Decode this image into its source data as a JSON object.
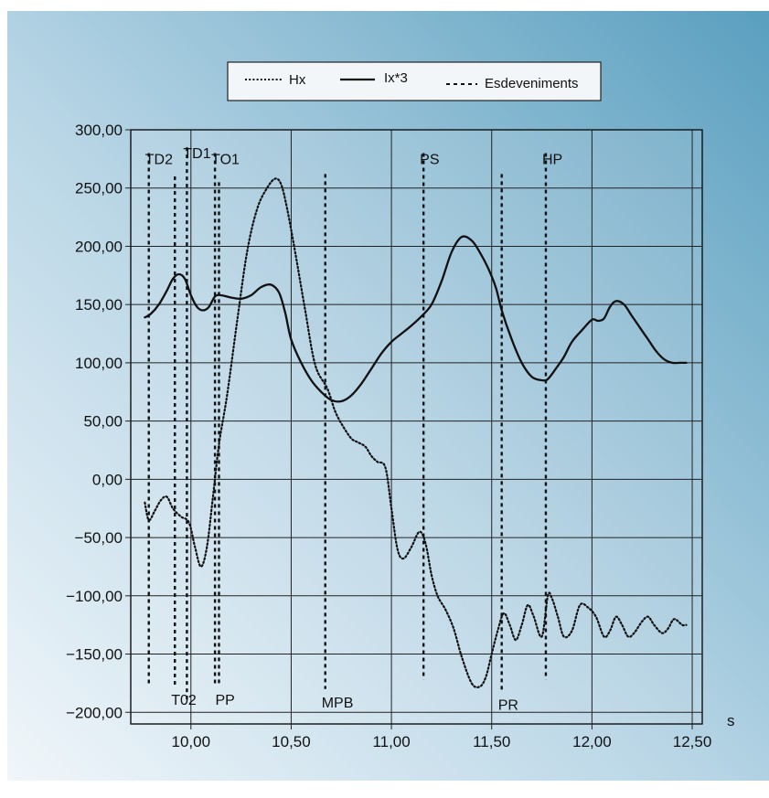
{
  "chart_data": {
    "type": "line",
    "xlabel": "s",
    "ylabel": "",
    "xlim": [
      9.7,
      12.55
    ],
    "ylim": [
      -210,
      300
    ],
    "x_ticks": [
      10.0,
      10.5,
      11.0,
      11.5,
      12.0,
      12.5
    ],
    "x_tick_labels": [
      "10,00",
      "10,50",
      "11,00",
      "11,50",
      "12,00",
      "12,50"
    ],
    "y_ticks": [
      300,
      250,
      200,
      150,
      100,
      50,
      0,
      -50,
      -100,
      -150,
      -200
    ],
    "y_tick_labels": [
      "300,00",
      "250,00",
      "200,00",
      "150,00",
      "100,00",
      "50,00",
      "0,00",
      "−50,00",
      "−100,00",
      "−150,00",
      "−200,00"
    ],
    "grid": true,
    "legend": {
      "position": "top",
      "items": [
        {
          "label": "Hx",
          "style": "dotted"
        },
        {
          "label": "Ix*3",
          "style": "solid"
        },
        {
          "label": "Esdeveniments",
          "style": "dashed"
        }
      ]
    },
    "series": [
      {
        "name": "Hx",
        "style": "dotted",
        "x": [
          9.77,
          9.79,
          9.82,
          9.85,
          9.88,
          9.91,
          9.95,
          9.99,
          10.02,
          10.05,
          10.08,
          10.11,
          10.14,
          10.18,
          10.23,
          10.28,
          10.33,
          10.38,
          10.42,
          10.45,
          10.48,
          10.52,
          10.57,
          10.62,
          10.68,
          10.72,
          10.76,
          10.8,
          10.83,
          10.87,
          10.9,
          10.93,
          10.97,
          11.0,
          11.03,
          11.06,
          11.1,
          11.14,
          11.17,
          11.2,
          11.23,
          11.27,
          11.31,
          11.35,
          11.4,
          11.44,
          11.47,
          11.5,
          11.53,
          11.56,
          11.59,
          11.62,
          11.65,
          11.68,
          11.71,
          11.75,
          11.78,
          11.8,
          11.83,
          11.86,
          11.9,
          11.94,
          11.98,
          12.02,
          12.06,
          12.09,
          12.12,
          12.15,
          12.18,
          12.21,
          12.25,
          12.28,
          12.31,
          12.35,
          12.38,
          12.41,
          12.45,
          12.47
        ],
        "y": [
          -20,
          -35,
          -27,
          -18,
          -15,
          -25,
          -32,
          -37,
          -58,
          -75,
          -58,
          -15,
          30,
          72,
          135,
          195,
          232,
          250,
          258,
          253,
          232,
          195,
          145,
          98,
          78,
          58,
          45,
          35,
          32,
          28,
          20,
          15,
          10,
          -25,
          -60,
          -68,
          -58,
          -45,
          -55,
          -82,
          -100,
          -112,
          -128,
          -152,
          -175,
          -178,
          -170,
          -150,
          -130,
          -115,
          -125,
          -138,
          -125,
          -108,
          -118,
          -135,
          -100,
          -102,
          -118,
          -135,
          -130,
          -108,
          -110,
          -118,
          -135,
          -130,
          -118,
          -125,
          -135,
          -132,
          -122,
          -118,
          -125,
          -132,
          -128,
          -120,
          -125,
          -125
        ]
      },
      {
        "name": "Ix*3",
        "style": "solid",
        "x": [
          9.77,
          9.8,
          9.84,
          9.88,
          9.91,
          9.94,
          9.97,
          10.0,
          10.03,
          10.06,
          10.09,
          10.12,
          10.15,
          10.2,
          10.25,
          10.3,
          10.35,
          10.4,
          10.44,
          10.47,
          10.5,
          10.55,
          10.6,
          10.65,
          10.7,
          10.75,
          10.8,
          10.85,
          10.9,
          10.95,
          11.0,
          11.05,
          11.1,
          11.15,
          11.2,
          11.25,
          11.3,
          11.35,
          11.4,
          11.44,
          11.48,
          11.52,
          11.55,
          11.6,
          11.65,
          11.7,
          11.75,
          11.78,
          11.82,
          11.86,
          11.9,
          11.95,
          12.0,
          12.03,
          12.06,
          12.09,
          12.12,
          12.16,
          12.2,
          12.24,
          12.28,
          12.32,
          12.36,
          12.4,
          12.44,
          12.47
        ],
        "y": [
          139,
          142,
          150,
          162,
          172,
          176,
          172,
          158,
          148,
          145,
          148,
          157,
          158,
          156,
          155,
          158,
          165,
          167,
          160,
          143,
          120,
          100,
          85,
          75,
          68,
          67,
          72,
          82,
          95,
          108,
          118,
          125,
          132,
          140,
          150,
          170,
          195,
          208,
          205,
          195,
          182,
          165,
          145,
          120,
          100,
          88,
          85,
          86,
          95,
          105,
          118,
          128,
          137,
          136,
          138,
          148,
          153,
          150,
          140,
          130,
          120,
          110,
          103,
          100,
          100,
          100
        ]
      }
    ],
    "events": [
      {
        "label": "TD2",
        "x": 9.79,
        "y_top": 280,
        "y_bottom": -178,
        "label_pos": "top"
      },
      {
        "label": "T02",
        "x": 9.92,
        "y_top": 260,
        "y_bottom": -178,
        "label_pos": "bottom"
      },
      {
        "label": "TD1",
        "x": 9.98,
        "y_top": 285,
        "y_bottom": -190,
        "label_pos": "top"
      },
      {
        "label": "TO1",
        "x": 10.12,
        "y_top": 280,
        "y_bottom": -178,
        "label_pos": "top"
      },
      {
        "label": "PP",
        "x": 10.14,
        "y_top": 255,
        "y_bottom": -178,
        "label_pos": "bottom"
      },
      {
        "label": "MPB",
        "x": 10.67,
        "y_top": 262,
        "y_bottom": -180,
        "label_pos": "bottom"
      },
      {
        "label": "PS",
        "x": 11.16,
        "y_top": 280,
        "y_bottom": -172,
        "label_pos": "top"
      },
      {
        "label": "PR",
        "x": 11.55,
        "y_top": 262,
        "y_bottom": -182,
        "label_pos": "bottom"
      },
      {
        "label": "HP",
        "x": 11.77,
        "y_top": 280,
        "y_bottom": -172,
        "label_pos": "top"
      }
    ],
    "colors": {
      "background_dark": "#5ea4c4",
      "background_light": "#e4f0f7",
      "line": "#111111",
      "grid": "#222222",
      "legend_bg": "#f3f6f8"
    }
  }
}
